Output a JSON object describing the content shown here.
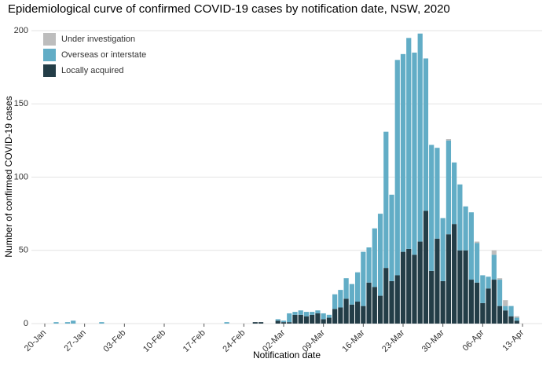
{
  "chart_data": {
    "type": "stacked_bar",
    "title": "Epidemiological curve of confirmed COVID-19 cases by notification date, NSW, 2020",
    "x_label": "Notification date",
    "y_label": "Number of confirmed COVID-19 cases",
    "categories": [
      "20-Jan",
      null,
      null,
      null,
      null,
      null,
      null,
      "27-Jan",
      null,
      null,
      null,
      null,
      null,
      null,
      "03-Feb",
      null,
      null,
      null,
      null,
      null,
      null,
      "10-Feb",
      null,
      null,
      null,
      null,
      null,
      null,
      "17-Feb",
      null,
      null,
      null,
      null,
      null,
      null,
      "24-Feb",
      null,
      null,
      null,
      null,
      null,
      null,
      "02-Mar",
      null,
      null,
      null,
      null,
      null,
      null,
      "09-Mar",
      null,
      null,
      null,
      null,
      null,
      null,
      "16-Mar",
      null,
      null,
      null,
      null,
      null,
      null,
      "23-Mar",
      null,
      null,
      null,
      null,
      null,
      null,
      "30-Mar",
      null,
      null,
      null,
      null,
      null,
      null,
      "06-Apr",
      null,
      null,
      null,
      null,
      null,
      null,
      "13-Apr"
    ],
    "series": [
      {
        "name": "Under investigation",
        "color": "#bdbdbd",
        "values": [
          0,
          0,
          0,
          0,
          0,
          0,
          0,
          0,
          0,
          0,
          0,
          0,
          0,
          0,
          0,
          0,
          0,
          0,
          0,
          0,
          0,
          0,
          0,
          0,
          0,
          0,
          0,
          0,
          0,
          0,
          0,
          0,
          0,
          0,
          0,
          0,
          0,
          0,
          0,
          0,
          0,
          0,
          0,
          0,
          0,
          0,
          0,
          0,
          0,
          0,
          0,
          0,
          0,
          0,
          0,
          0,
          0,
          0,
          0,
          0,
          0,
          0,
          0,
          0,
          0,
          0,
          0,
          0,
          0,
          0,
          0,
          1,
          0,
          0,
          0,
          0,
          1,
          0,
          0,
          3,
          1,
          4,
          0,
          1,
          0
        ]
      },
      {
        "name": "Overseas or interstate",
        "color": "#62adc6",
        "values": [
          0,
          0,
          1,
          0,
          1,
          2,
          0,
          0,
          0,
          0,
          1,
          0,
          0,
          0,
          0,
          0,
          0,
          0,
          0,
          0,
          0,
          0,
          0,
          0,
          0,
          0,
          0,
          0,
          0,
          0,
          0,
          0,
          1,
          0,
          0,
          0,
          0,
          0,
          0,
          0,
          0,
          1,
          1,
          6,
          2,
          3,
          3,
          2,
          2,
          4,
          2,
          10,
          12,
          14,
          14,
          20,
          37,
          24,
          40,
          56,
          93,
          59,
          147,
          135,
          144,
          138,
          142,
          104,
          86,
          62,
          43,
          64,
          42,
          45,
          30,
          46,
          27,
          19,
          8,
          17,
          18,
          3,
          7,
          2,
          0
        ]
      },
      {
        "name": "Locally acquired",
        "color": "#233d47",
        "values": [
          0,
          0,
          0,
          0,
          0,
          0,
          0,
          0,
          0,
          0,
          0,
          0,
          0,
          0,
          0,
          0,
          0,
          0,
          0,
          0,
          0,
          0,
          0,
          0,
          0,
          0,
          0,
          0,
          0,
          0,
          0,
          0,
          0,
          0,
          0,
          0,
          0,
          1,
          1,
          0,
          0,
          2,
          1,
          1,
          6,
          6,
          5,
          6,
          7,
          3,
          4,
          10,
          11,
          17,
          13,
          15,
          12,
          28,
          25,
          19,
          38,
          29,
          33,
          49,
          51,
          47,
          56,
          77,
          36,
          58,
          29,
          61,
          68,
          50,
          50,
          30,
          28,
          14,
          24,
          30,
          12,
          9,
          5,
          2,
          0
        ]
      }
    ],
    "ylim": [
      0,
      200
    ],
    "yticks": [
      0,
      50,
      100,
      150,
      200
    ],
    "grid": true,
    "legend": "top-left"
  }
}
